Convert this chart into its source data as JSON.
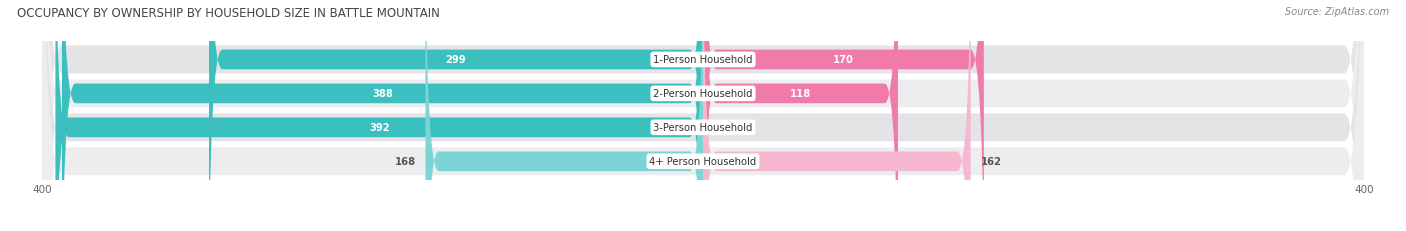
{
  "title": "OCCUPANCY BY OWNERSHIP BY HOUSEHOLD SIZE IN BATTLE MOUNTAIN",
  "source": "Source: ZipAtlas.com",
  "categories": [
    "1-Person Household",
    "2-Person Household",
    "3-Person Household",
    "4+ Person Household"
  ],
  "owner_values": [
    299,
    388,
    392,
    168
  ],
  "renter_values": [
    170,
    118,
    0,
    162
  ],
  "owner_color": "#3BBFBF",
  "renter_color": "#F07BAA",
  "owner_color_light": "#7DD4D4",
  "renter_color_light": "#F5B8D0",
  "row_bg_color_dark": "#E4E4E6",
  "row_bg_color_light": "#EDEDEF",
  "axis_max": 400,
  "title_fontsize": 8.5,
  "label_fontsize": 7.2,
  "value_fontsize": 7.2,
  "tick_fontsize": 7.5,
  "legend_fontsize": 7.5,
  "source_fontsize": 7.0
}
